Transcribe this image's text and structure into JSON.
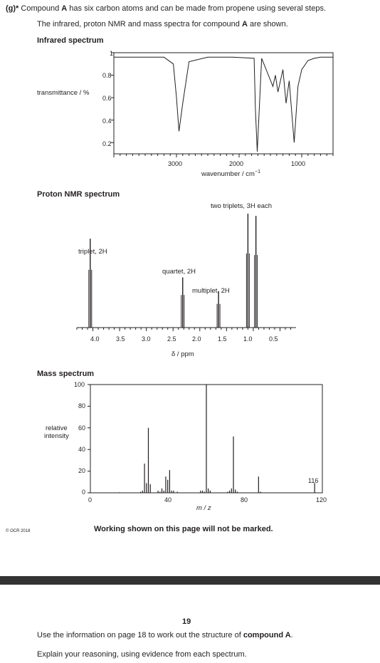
{
  "question": {
    "marker": "(g)*",
    "line1_pre": " Compound ",
    "compound": "A",
    "line1_post": " has six carbon atoms and can be made from propene using several steps.",
    "line2_pre": "The infrared, proton NMR and mass spectra for compound ",
    "line2_post": " are shown."
  },
  "ir": {
    "title": "Infrared spectrum",
    "ylabel": "transmittance / %",
    "xlabel": "wavenumber / cm",
    "xlabel_sup": "−1",
    "yticks": [
      "1",
      "0.8",
      "0.6",
      "0.4",
      "0.2"
    ],
    "xticks": [
      "3000",
      "2000",
      "1000"
    ]
  },
  "nmr": {
    "title": "Proton NMR spectrum",
    "xlabel": "δ / ppm",
    "xticks": [
      "4.0",
      "3.5",
      "3.0",
      "2.5",
      "2.0",
      "1.5",
      "1.0",
      "0.5"
    ],
    "annotations": {
      "triplet": "triplet, 2H",
      "quartet": "quartet, 2H",
      "multiplet": "multiplet, 2H",
      "two_triplets": "two triplets, 3H each"
    }
  },
  "mass": {
    "title": "Mass spectrum",
    "ylabel_1": "relative",
    "ylabel_2": "intensity",
    "xlabel": "m / z",
    "yticks": [
      "100",
      "80",
      "60",
      "40",
      "20",
      "0"
    ],
    "xticks": [
      "0",
      "40",
      "80",
      "120"
    ],
    "peak_label": "116"
  },
  "footer": {
    "copyright": "© OCR 2018",
    "working_note": "Working shown on this page will not be marked."
  },
  "next_page": {
    "page_number": "19",
    "line1_pre": "Use the information on page 18 to work out the structure of ",
    "line1_strong": "compound A",
    "line1_post": ".",
    "line2": "Explain your reasoning, using evidence from each spectrum."
  },
  "chart_data": [
    {
      "type": "line",
      "title": "Infrared spectrum",
      "xlabel": "wavenumber / cm−1",
      "ylabel": "transmittance / %",
      "xlim": [
        4000,
        500
      ],
      "ylim": [
        0.1,
        1.0
      ],
      "x": [
        4000,
        3600,
        3200,
        3050,
        3000,
        2960,
        2900,
        2800,
        2500,
        2100,
        1760,
        1740,
        1710,
        1640,
        1460,
        1420,
        1380,
        1300,
        1250,
        1200,
        1120,
        1060,
        1000,
        900,
        800,
        700,
        500
      ],
      "y": [
        0.96,
        0.96,
        0.96,
        0.9,
        0.6,
        0.3,
        0.55,
        0.92,
        0.96,
        0.96,
        0.95,
        0.5,
        0.12,
        0.95,
        0.7,
        0.8,
        0.65,
        0.85,
        0.55,
        0.75,
        0.2,
        0.7,
        0.85,
        0.93,
        0.95,
        0.96,
        0.96
      ]
    },
    {
      "type": "bar",
      "title": "Proton NMR spectrum",
      "xlabel": "δ / ppm",
      "xlim": [
        4.3,
        0.2
      ],
      "peaks": [
        {
          "shift": 4.05,
          "height": 0.78
        },
        {
          "shift": 2.32,
          "height": 0.44
        },
        {
          "shift": 1.65,
          "height": 0.32
        },
        {
          "shift": 1.1,
          "height": 1.0
        },
        {
          "shift": 0.95,
          "height": 0.98
        }
      ]
    },
    {
      "type": "bar",
      "title": "Mass spectrum",
      "xlabel": "m / z",
      "ylabel": "relative intensity",
      "xlim": [
        0,
        120
      ],
      "ylim": [
        0,
        100
      ],
      "x": [
        15,
        26,
        27,
        28,
        29,
        30,
        31,
        35,
        36,
        37,
        38,
        39,
        40,
        41,
        42,
        43,
        45,
        57,
        58,
        59,
        60,
        61,
        62,
        71,
        72,
        73,
        74,
        75,
        76,
        87,
        88,
        116
      ],
      "values": [
        0.5,
        1,
        2,
        27,
        9,
        60,
        8,
        2,
        1,
        4,
        2,
        15,
        12,
        21,
        2,
        2,
        1,
        2,
        2,
        1,
        100,
        4,
        2,
        1,
        2,
        4,
        52,
        3,
        1,
        15,
        1,
        9
      ]
    }
  ]
}
